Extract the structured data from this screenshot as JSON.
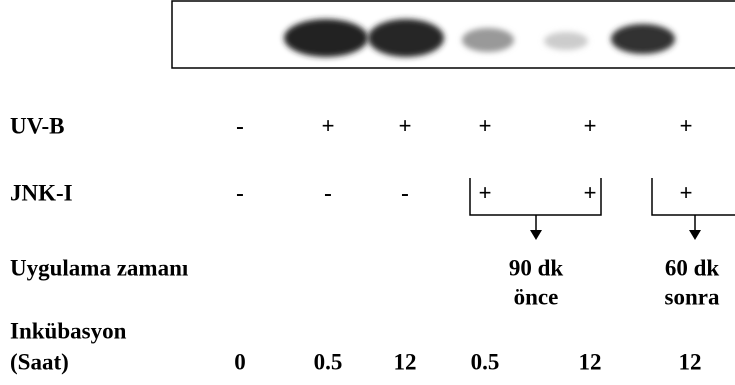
{
  "rows": [
    {
      "label": "UV-B",
      "cells": [
        "-",
        "+",
        "+",
        "+",
        "+",
        "+"
      ]
    },
    {
      "label": "JNK-I",
      "cells": [
        "-",
        "-",
        "-",
        "+",
        "+",
        "+"
      ]
    }
  ],
  "application_time": {
    "label": "Uygulama zamanı",
    "groups": [
      [
        "90 dk",
        "önce"
      ],
      [
        "60 dk",
        "sonra"
      ]
    ]
  },
  "incubation": {
    "label": [
      "Inkübasyon",
      "(Saat)"
    ],
    "cells": [
      "0",
      "0.5",
      "12",
      "0.5",
      "12",
      "12"
    ]
  }
}
